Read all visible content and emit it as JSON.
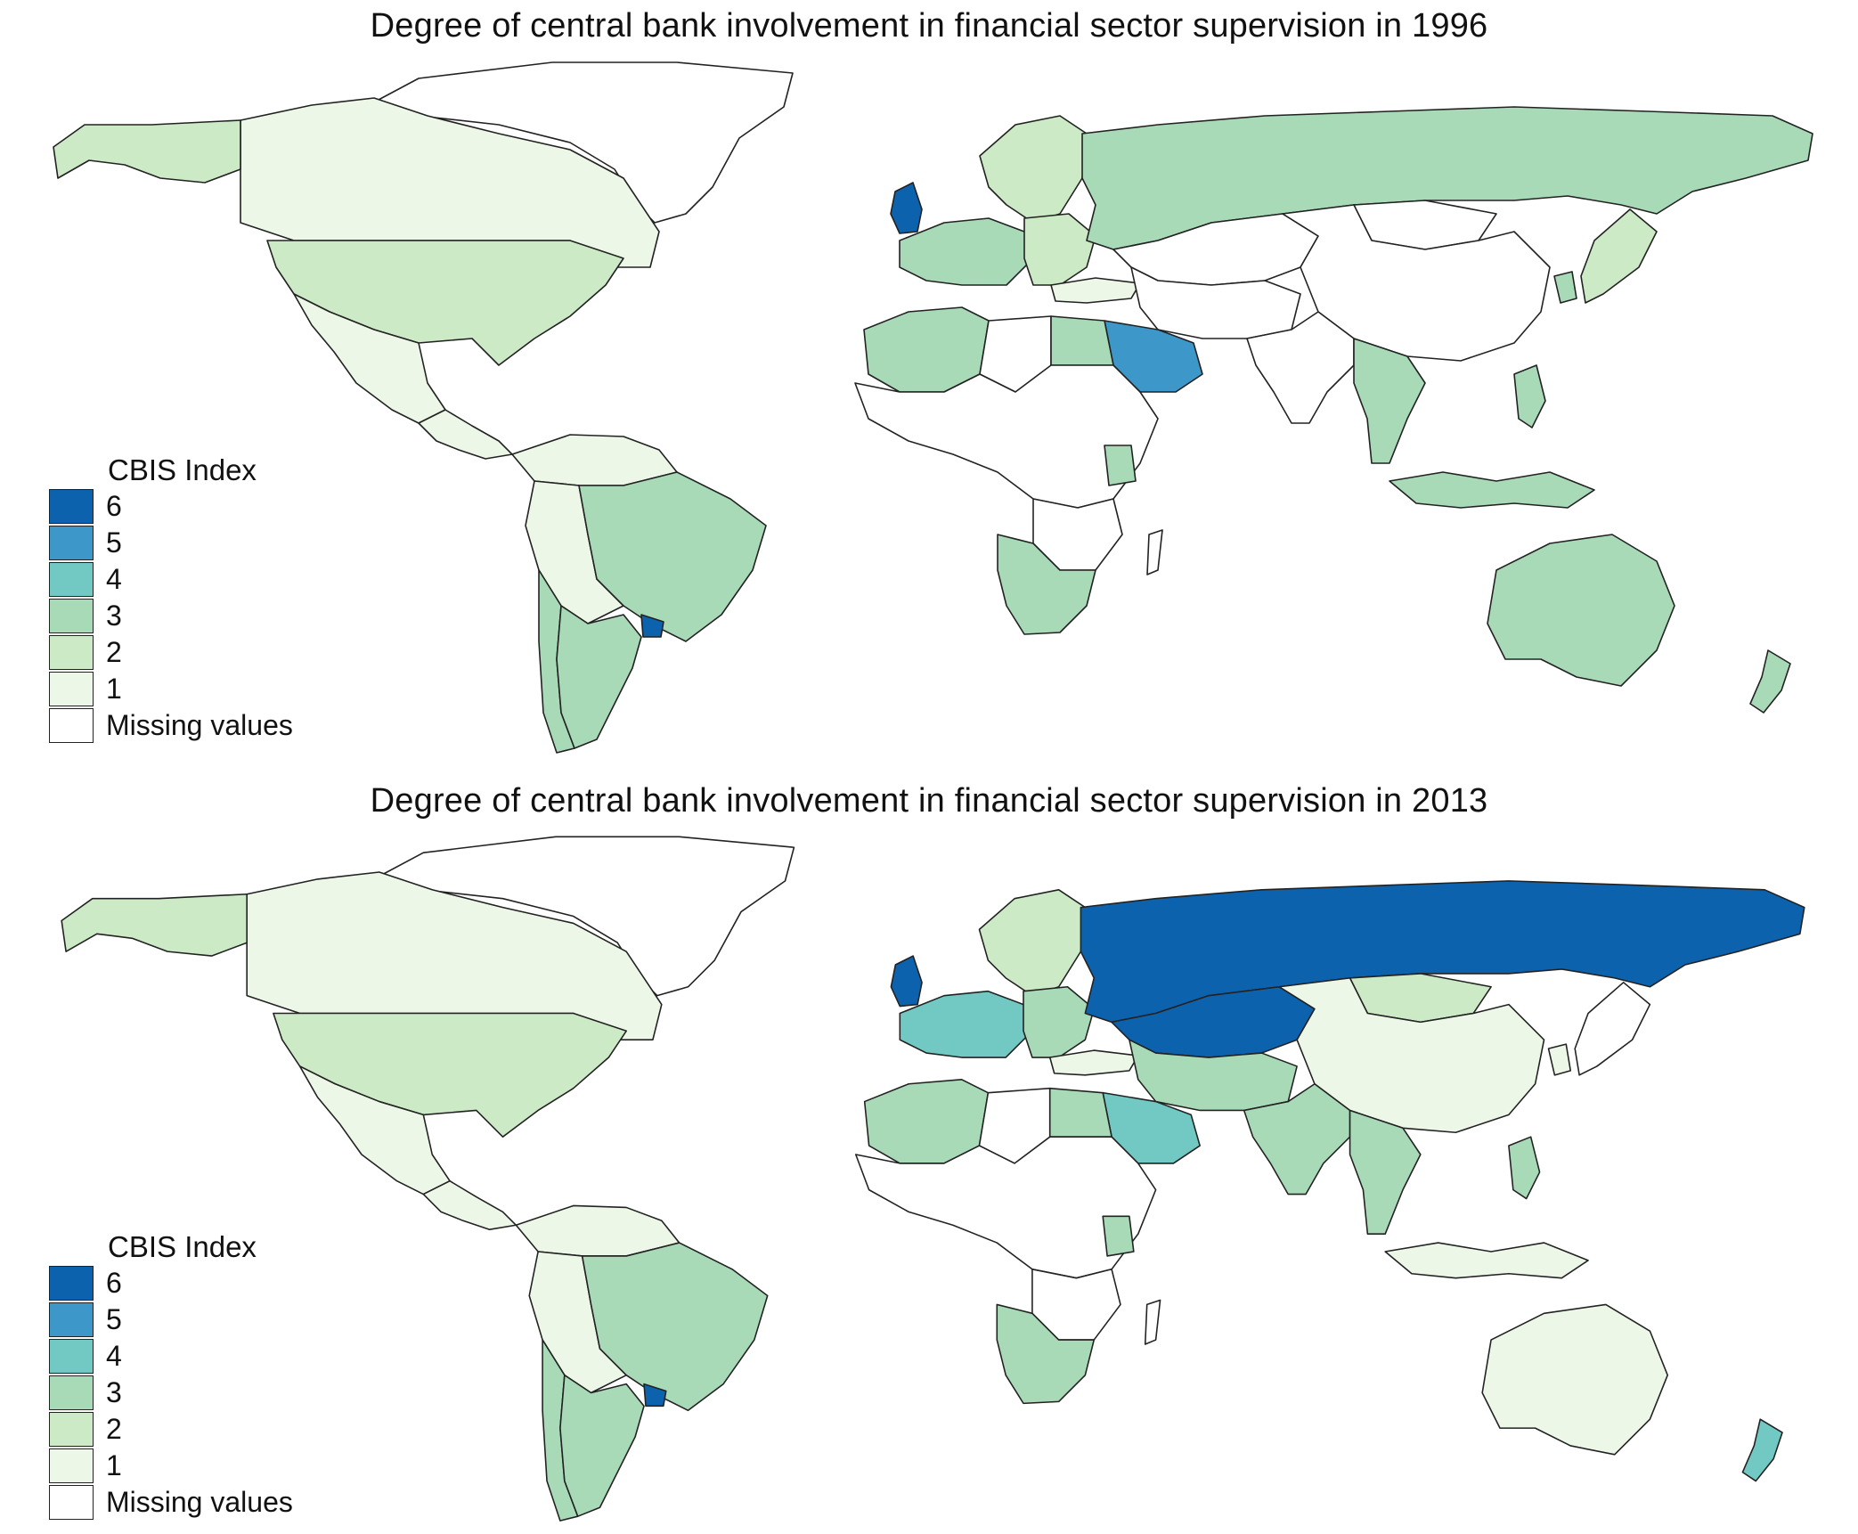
{
  "palette": {
    "6": "#0d62ad",
    "5": "#3d97c9",
    "4": "#72c9c3",
    "3": "#a8dab8",
    "2": "#cdeac6",
    "1": "#edf7e8",
    "missing": "#ffffff",
    "border": "#222222",
    "ocean": "#ffffff"
  },
  "maps": [
    {
      "id": "1996",
      "title": "Degree of central bank involvement in financial sector supervision in 1996",
      "legend": {
        "title": "CBIS Index",
        "entries": [
          {
            "label": "6",
            "key": "6"
          },
          {
            "label": "5",
            "key": "5"
          },
          {
            "label": "4",
            "key": "4"
          },
          {
            "label": "3",
            "key": "3"
          },
          {
            "label": "2",
            "key": "2"
          },
          {
            "label": "1",
            "key": "1"
          },
          {
            "label": "Missing values",
            "key": "missing"
          }
        ]
      },
      "regions": {
        "canada": "1",
        "usa": "2",
        "mexico": "1",
        "central_america": "1",
        "greenland": "missing",
        "south_america_north": "1",
        "brazil": "3",
        "andes": "1",
        "argentina": "3",
        "chile": "3",
        "uruguay": "6",
        "uk": "6",
        "west_europe": "3",
        "east_europe": "2",
        "scandinavia": "2",
        "russia": "3",
        "central_asia": "missing",
        "china": "missing",
        "mongolia": "missing",
        "middle_east": "missing",
        "saudi_arabia": "5",
        "turkey": "1",
        "north_africa_west": "3",
        "north_africa_east": "missing",
        "egypt": "3",
        "central_africa": "missing",
        "east_africa": "missing",
        "kenya": "3",
        "southern_africa": "3",
        "madagascar": "missing",
        "india": "missing",
        "southeast_asia": "3",
        "indonesia": "3",
        "japan": "2",
        "korea": "3",
        "philippines": "3",
        "australia": "3",
        "new_zealand": "3"
      }
    },
    {
      "id": "2013",
      "title": "Degree of central bank involvement in financial sector supervision in 2013",
      "legend": {
        "title": "CBIS Index",
        "entries": [
          {
            "label": "6",
            "key": "6"
          },
          {
            "label": "5",
            "key": "5"
          },
          {
            "label": "4",
            "key": "4"
          },
          {
            "label": "3",
            "key": "3"
          },
          {
            "label": "2",
            "key": "2"
          },
          {
            "label": "1",
            "key": "1"
          },
          {
            "label": "Missing values",
            "key": "missing"
          }
        ]
      },
      "regions": {
        "canada": "1",
        "usa": "2",
        "mexico": "1",
        "central_america": "1",
        "greenland": "missing",
        "south_america_north": "1",
        "brazil": "3",
        "andes": "1",
        "argentina": "3",
        "chile": "3",
        "uruguay": "6",
        "uk": "6",
        "west_europe": "4",
        "east_europe": "3",
        "scandinavia": "2",
        "russia": "6",
        "central_asia": "6",
        "china": "1",
        "mongolia": "2",
        "middle_east": "3",
        "saudi_arabia": "4",
        "turkey": "1",
        "north_africa_west": "3",
        "north_africa_east": "missing",
        "egypt": "3",
        "central_africa": "missing",
        "east_africa": "missing",
        "kenya": "3",
        "southern_africa": "3",
        "madagascar": "missing",
        "india": "3",
        "southeast_asia": "3",
        "indonesia": "1",
        "japan": "missing",
        "korea": "1",
        "philippines": "3",
        "australia": "1",
        "new_zealand": "4"
      }
    }
  ]
}
